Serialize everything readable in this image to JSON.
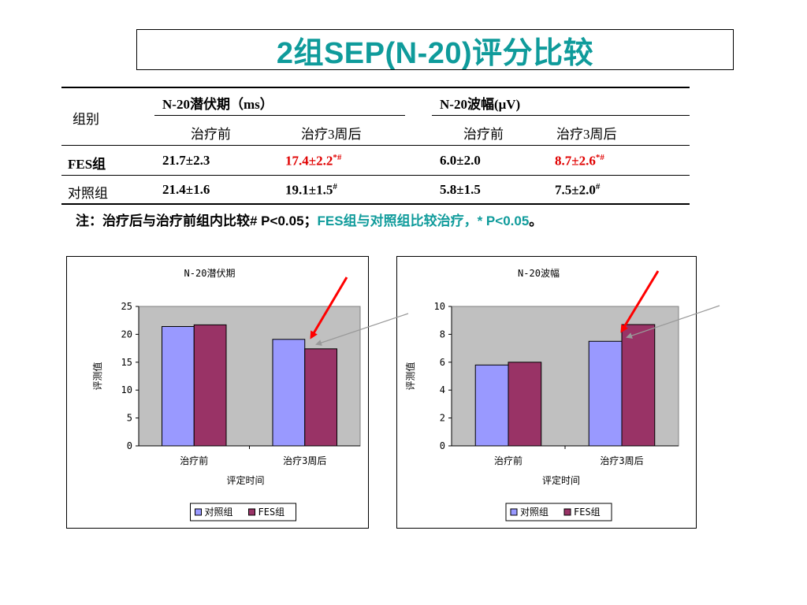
{
  "title": "2组SEP(N-20)评分比较",
  "table": {
    "group_header": "组别",
    "latency_header": "N-20潜伏期（ms）",
    "amplitude_header": "N-20波幅(μV)",
    "sub_before": "治疗前",
    "sub_after": "治疗3周后",
    "rows": [
      {
        "group": "FES组",
        "lat_before": "21.7±2.3",
        "lat_after": "17.4±2.2",
        "lat_after_mark": "*#",
        "amp_before": "6.0±2.0",
        "amp_after": "8.7±2.6",
        "amp_after_mark": "*#"
      },
      {
        "group": "对照组",
        "lat_before": "21.4±1.6",
        "lat_after": "19.1±1.5",
        "lat_after_mark": "#",
        "amp_before": "5.8±1.5",
        "amp_after": "7.5±2.0",
        "amp_after_mark": "#"
      }
    ]
  },
  "note": {
    "part1": "注：治疗后与治疗前组内比较# P<0.05；",
    "part2": "FES组与对照组比较治疗，* P<0.05",
    "part3": "。"
  },
  "colors": {
    "title": "#0f9b9b",
    "control": "#9999ff",
    "fes": "#993366",
    "plot_bg": "#c0c0c0",
    "arrow": "#ff0000",
    "highlight": "#e00000"
  },
  "chart_data": [
    {
      "type": "bar",
      "title": "N-20潜伏期",
      "xlabel": "评定时间",
      "ylabel": "评测值",
      "categories": [
        "治疗前",
        "治疗3周后"
      ],
      "series": [
        {
          "name": "对照组",
          "values": [
            21.4,
            19.1
          ]
        },
        {
          "name": "FES组",
          "values": [
            21.7,
            17.4
          ]
        }
      ],
      "ylim": [
        0,
        25
      ],
      "yticks": [
        0,
        5,
        10,
        15,
        20,
        25
      ],
      "legend": "bottom",
      "grid": false
    },
    {
      "type": "bar",
      "title": "N-20波幅",
      "xlabel": "评定时间",
      "ylabel": "评测值",
      "categories": [
        "治疗前",
        "治疗3周后"
      ],
      "series": [
        {
          "name": "对照组",
          "values": [
            5.8,
            7.5
          ]
        },
        {
          "name": "FES组",
          "values": [
            6.0,
            8.7
          ]
        }
      ],
      "ylim": [
        0,
        10
      ],
      "yticks": [
        0,
        2,
        4,
        6,
        8,
        10
      ],
      "legend": "bottom",
      "grid": false
    }
  ]
}
